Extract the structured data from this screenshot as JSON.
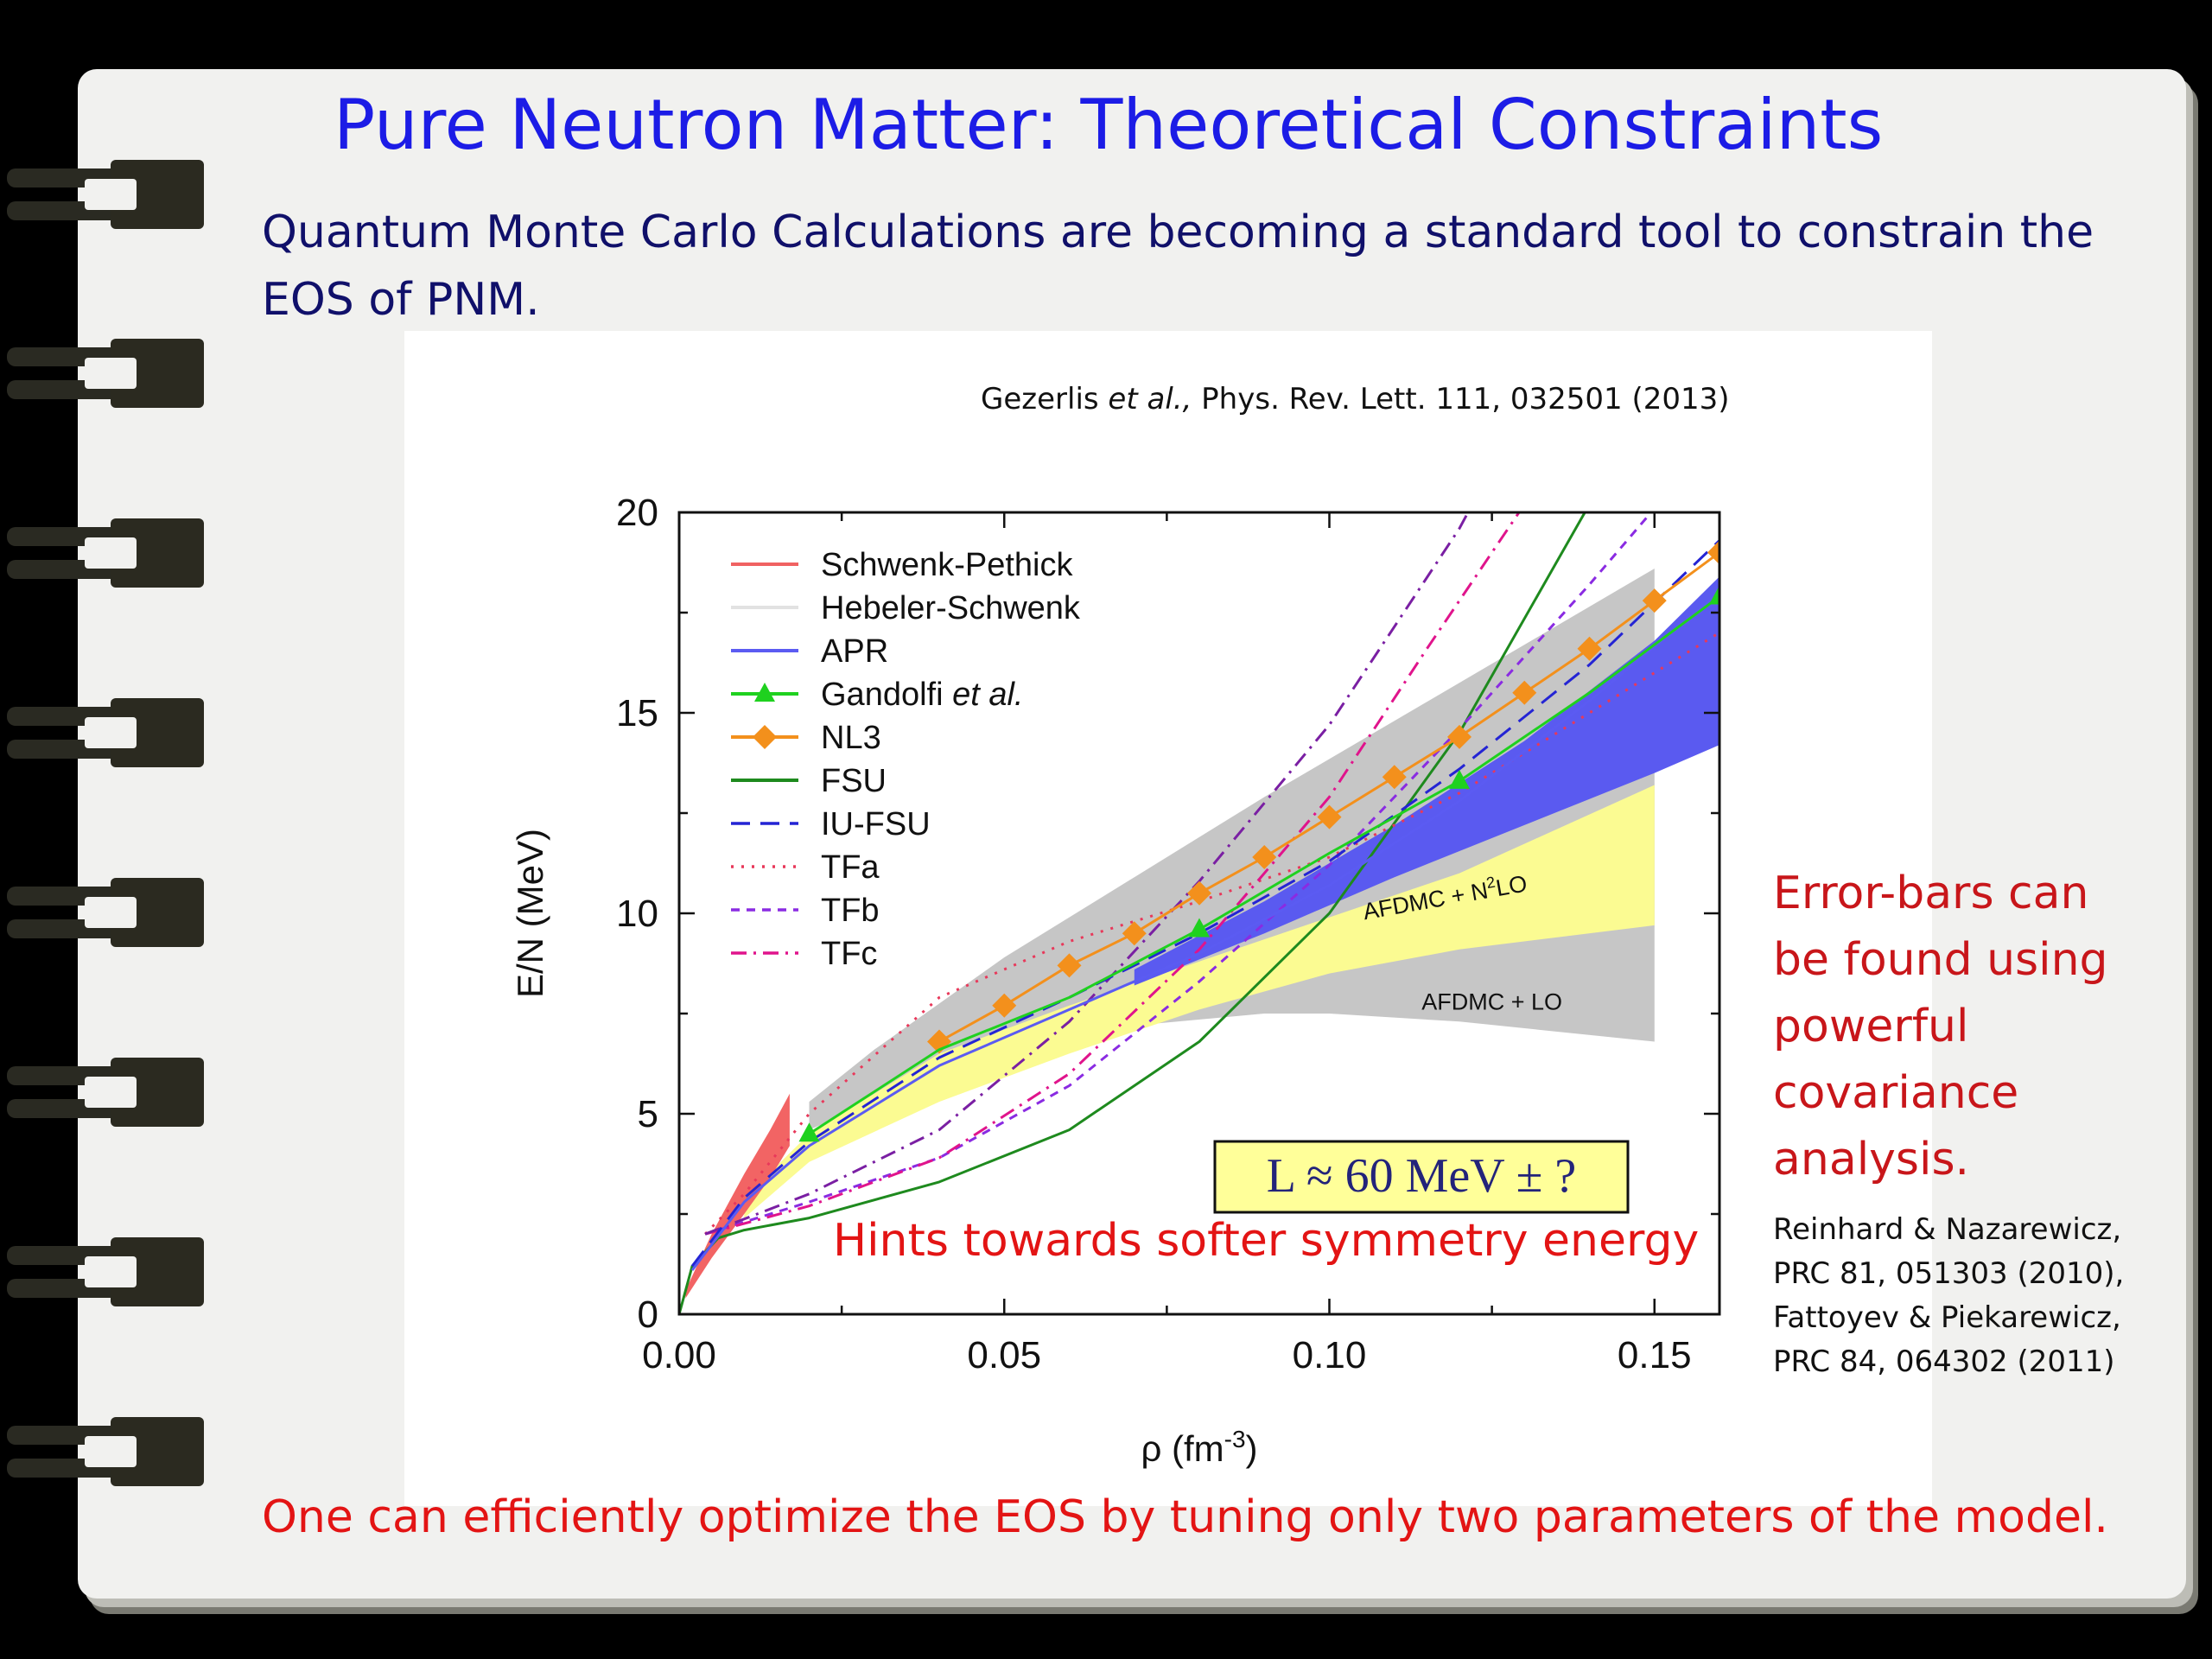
{
  "slide": {
    "title": "Pure Neutron Matter: Theoretical Constraints",
    "intro": "Quantum Monte Carlo Calculations are becoming a standard tool to constrain the EOS of PNM.",
    "citation_pre": "Gezerlis ",
    "citation_et_al": "et al.,",
    "citation_post": " Phys. Rev. Lett. 111, 032501 (2013)",
    "side_note": "Error-bars can be found using powerful covariance analysis.",
    "refs": [
      "Reinhard & Nazarewicz,",
      "PRC 81, 051303 (2010),",
      "Fattoyev  & Piekarewicz,",
      "PRC 84, 064302 (2011)"
    ],
    "bottom": "One can efficiently optimize the EOS by tuning only two parameters of the model."
  },
  "chart_data": {
    "type": "line",
    "xlabel": "ρ (fm",
    "xlabel_sup": "-3",
    "xlabel_end": ")",
    "ylabel": "E/N (MeV)",
    "xlim": [
      0,
      0.16
    ],
    "ylim": [
      0,
      20
    ],
    "xticks": [
      {
        "v": 0.0,
        "label": "0.00"
      },
      {
        "v": 0.05,
        "label": "0.05"
      },
      {
        "v": 0.1,
        "label": "0.10"
      },
      {
        "v": 0.15,
        "label": "0.15"
      }
    ],
    "yticks": [
      {
        "v": 0,
        "label": "0"
      },
      {
        "v": 5,
        "label": "5"
      },
      {
        "v": 10,
        "label": "10"
      },
      {
        "v": 15,
        "label": "15"
      },
      {
        "v": 20,
        "label": "20"
      }
    ],
    "legend_position": "top-left",
    "legend": [
      {
        "name": "Schwenk-Pethick",
        "style": "solid",
        "color": "#f06262"
      },
      {
        "name": "Hebeler-Schwenk",
        "style": "solid",
        "color": "#e2e2e2"
      },
      {
        "name": "APR",
        "style": "solid",
        "color": "#5b5bf2"
      },
      {
        "name": "Gandolfi ",
        "name_italic": "et al.",
        "style": "solid",
        "color": "#1fd11f",
        "marker": "triangle"
      },
      {
        "name": "NL3",
        "style": "solid",
        "color": "#f3901c",
        "marker": "diamond"
      },
      {
        "name": "FSU",
        "style": "solid",
        "color": "#1e8a1e"
      },
      {
        "name": "IU-FSU",
        "style": "dash",
        "color": "#2424d4"
      },
      {
        "name": "TFa",
        "style": "dot",
        "color": "#e8385a"
      },
      {
        "name": "TFb",
        "style": "shortdash",
        "color": "#8a2be2"
      },
      {
        "name": "TFc",
        "style": "dashdot",
        "color": "#e0148c"
      }
    ],
    "bands": [
      {
        "name": "AFDMC + LO",
        "color": "#c6c6c6",
        "upper": [
          [
            0.02,
            5.3
          ],
          [
            0.03,
            6.6
          ],
          [
            0.05,
            8.9
          ],
          [
            0.07,
            10.9
          ],
          [
            0.09,
            12.9
          ],
          [
            0.11,
            14.8
          ],
          [
            0.13,
            16.7
          ],
          [
            0.15,
            18.6
          ]
        ],
        "lower": [
          [
            0.02,
            4.6
          ],
          [
            0.03,
            5.3
          ],
          [
            0.05,
            6.6
          ],
          [
            0.07,
            7.2
          ],
          [
            0.09,
            7.5
          ],
          [
            0.1,
            7.5
          ],
          [
            0.12,
            7.3
          ],
          [
            0.15,
            6.8
          ]
        ]
      },
      {
        "name": "AFDMC + N²LO",
        "color": "#fbfb92",
        "upper": [
          [
            0.01,
            2.9
          ],
          [
            0.02,
            4.5
          ],
          [
            0.04,
            6.5
          ],
          [
            0.06,
            7.7
          ],
          [
            0.08,
            8.8
          ],
          [
            0.1,
            9.9
          ],
          [
            0.12,
            11.0
          ],
          [
            0.15,
            13.2
          ]
        ],
        "lower": [
          [
            0.01,
            2.4
          ],
          [
            0.02,
            3.8
          ],
          [
            0.04,
            5.3
          ],
          [
            0.06,
            6.5
          ],
          [
            0.08,
            7.6
          ],
          [
            0.1,
            8.5
          ],
          [
            0.12,
            9.1
          ],
          [
            0.15,
            9.7
          ]
        ]
      },
      {
        "name": "APR band",
        "color": "#5a5af0",
        "upper": [
          [
            0.07,
            8.6
          ],
          [
            0.09,
            10.3
          ],
          [
            0.11,
            12.2
          ],
          [
            0.13,
            14.3
          ],
          [
            0.15,
            16.8
          ],
          [
            0.16,
            18.4
          ]
        ],
        "lower": [
          [
            0.07,
            8.2
          ],
          [
            0.09,
            9.5
          ],
          [
            0.11,
            10.9
          ],
          [
            0.13,
            12.2
          ],
          [
            0.15,
            13.5
          ],
          [
            0.16,
            14.2
          ]
        ]
      },
      {
        "name": "Schwenk-Pethick band",
        "color": "#f26464",
        "upper": [
          [
            0.001,
            0.6
          ],
          [
            0.005,
            2.0
          ],
          [
            0.01,
            3.5
          ],
          [
            0.014,
            4.6
          ],
          [
            0.017,
            5.5
          ]
        ],
        "lower": [
          [
            0.001,
            0.4
          ],
          [
            0.005,
            1.4
          ],
          [
            0.01,
            2.5
          ],
          [
            0.014,
            3.4
          ],
          [
            0.017,
            4.2
          ]
        ]
      }
    ],
    "series": [
      {
        "name": "FSU",
        "color": "#1e8a1e",
        "style": "solid",
        "points": [
          [
            0,
            0
          ],
          [
            0.002,
            1.2
          ],
          [
            0.006,
            1.9
          ],
          [
            0.01,
            2.1
          ],
          [
            0.02,
            2.4
          ],
          [
            0.04,
            3.3
          ],
          [
            0.06,
            4.6
          ],
          [
            0.08,
            6.8
          ],
          [
            0.1,
            10.0
          ],
          [
            0.12,
            14.5
          ],
          [
            0.14,
            20.2
          ]
        ]
      },
      {
        "name": "TFa",
        "color": "#e8385a",
        "style": "dot",
        "points": [
          [
            0.004,
            2.0
          ],
          [
            0.01,
            3.0
          ],
          [
            0.02,
            5.0
          ],
          [
            0.04,
            7.9
          ],
          [
            0.06,
            9.3
          ],
          [
            0.08,
            10.3
          ],
          [
            0.1,
            11.4
          ],
          [
            0.12,
            13.0
          ],
          [
            0.14,
            15.0
          ],
          [
            0.16,
            17.0
          ]
        ]
      },
      {
        "name": "TFb",
        "color": "#8a2be2",
        "style": "shortdash",
        "points": [
          [
            0.004,
            2.0
          ],
          [
            0.02,
            2.8
          ],
          [
            0.04,
            3.9
          ],
          [
            0.06,
            5.7
          ],
          [
            0.08,
            8.3
          ],
          [
            0.1,
            11.2
          ],
          [
            0.12,
            14.6
          ],
          [
            0.14,
            18.2
          ],
          [
            0.15,
            20.1
          ]
        ]
      },
      {
        "name": "TFc",
        "color": "#e0148c",
        "style": "dashdot",
        "points": [
          [
            0.004,
            2.0
          ],
          [
            0.02,
            2.7
          ],
          [
            0.04,
            3.9
          ],
          [
            0.06,
            6.0
          ],
          [
            0.08,
            9.1
          ],
          [
            0.1,
            12.9
          ],
          [
            0.115,
            16.6
          ],
          [
            0.13,
            20.2
          ]
        ]
      },
      {
        "name": "TFc (purple)",
        "color": "#7a1fa3",
        "style": "dashdot",
        "points": [
          [
            0.004,
            2.0
          ],
          [
            0.02,
            3.0
          ],
          [
            0.04,
            4.6
          ],
          [
            0.06,
            7.3
          ],
          [
            0.08,
            10.8
          ],
          [
            0.1,
            14.7
          ],
          [
            0.12,
            19.6
          ],
          [
            0.122,
            20.2
          ]
        ]
      },
      {
        "name": "IU-FSU",
        "color": "#2424d4",
        "style": "dash",
        "points": [
          [
            0.002,
            1.2
          ],
          [
            0.01,
            2.9
          ],
          [
            0.02,
            4.3
          ],
          [
            0.04,
            6.4
          ],
          [
            0.06,
            7.9
          ],
          [
            0.08,
            9.5
          ],
          [
            0.1,
            11.3
          ],
          [
            0.12,
            13.6
          ],
          [
            0.14,
            16.2
          ],
          [
            0.16,
            19.3
          ]
        ]
      },
      {
        "name": "APR",
        "color": "#5b5bf2",
        "style": "solid",
        "points": [
          [
            0.002,
            1.1
          ],
          [
            0.01,
            2.8
          ],
          [
            0.02,
            4.2
          ],
          [
            0.04,
            6.2
          ],
          [
            0.06,
            7.6
          ],
          [
            0.08,
            9.0
          ],
          [
            0.1,
            10.7
          ],
          [
            0.12,
            12.8
          ],
          [
            0.14,
            15.3
          ],
          [
            0.16,
            18.0
          ]
        ]
      }
    ],
    "marker_series": [
      {
        "name": "NL3",
        "color": "#f3901c",
        "marker": "diamond",
        "points": [
          [
            0.04,
            6.8
          ],
          [
            0.05,
            7.7
          ],
          [
            0.06,
            8.7
          ],
          [
            0.07,
            9.5
          ],
          [
            0.08,
            10.5
          ],
          [
            0.09,
            11.4
          ],
          [
            0.1,
            12.4
          ],
          [
            0.11,
            13.4
          ],
          [
            0.12,
            14.4
          ],
          [
            0.13,
            15.5
          ],
          [
            0.14,
            16.6
          ],
          [
            0.15,
            17.8
          ],
          [
            0.16,
            19.0
          ]
        ]
      },
      {
        "name": "Gandolfi et al.",
        "color": "#1fd11f",
        "marker": "triangle",
        "line_points": [
          [
            0.02,
            4.5
          ],
          [
            0.04,
            6.6
          ],
          [
            0.06,
            7.9
          ],
          [
            0.08,
            9.6
          ],
          [
            0.1,
            11.5
          ],
          [
            0.12,
            13.3
          ],
          [
            0.14,
            15.5
          ],
          [
            0.16,
            17.9
          ]
        ],
        "points": [
          [
            0.02,
            4.5
          ],
          [
            0.08,
            9.6
          ],
          [
            0.12,
            13.3
          ],
          [
            0.16,
            17.9
          ]
        ]
      }
    ],
    "band_labels": [
      {
        "text": "AFDMC + N",
        "sup": "2",
        "text_end": "LO",
        "x": 0.118,
        "y": 10.2,
        "rotate": -10
      },
      {
        "text": "AFDMC + LO",
        "sup": "",
        "text_end": "",
        "x": 0.125,
        "y": 7.6,
        "rotate": 0
      }
    ],
    "annotations": {
      "formula": "L ≈ 60  MeV ± ?",
      "formula_bg": "#ffff99",
      "hint": "Hints towards softer symmetry energy",
      "hint_color": "#e31414"
    }
  }
}
